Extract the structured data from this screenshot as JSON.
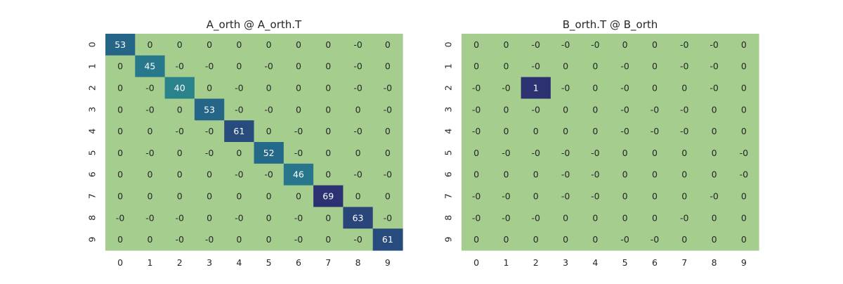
{
  "chart_data": [
    {
      "type": "heatmap",
      "title": "A_orth @ A_orth.T",
      "x_tick_labels": [
        "0",
        "1",
        "2",
        "3",
        "4",
        "5",
        "6",
        "7",
        "8",
        "9"
      ],
      "y_tick_labels": [
        "0",
        "1",
        "2",
        "3",
        "4",
        "5",
        "6",
        "7",
        "8",
        "9"
      ],
      "cell_labels": [
        [
          "53",
          "0",
          "0",
          "0",
          "0",
          "0",
          "0",
          "0",
          "-0",
          "0"
        ],
        [
          "0",
          "45",
          "-0",
          "-0",
          "0",
          "-0",
          "0",
          "0",
          "-0",
          "0"
        ],
        [
          "0",
          "-0",
          "40",
          "0",
          "-0",
          "0",
          "0",
          "0",
          "-0",
          "-0"
        ],
        [
          "0",
          "-0",
          "0",
          "53",
          "-0",
          "-0",
          "0",
          "0",
          "0",
          "-0"
        ],
        [
          "0",
          "0",
          "-0",
          "-0",
          "61",
          "0",
          "-0",
          "0",
          "-0",
          "0"
        ],
        [
          "0",
          "-0",
          "0",
          "-0",
          "0",
          "52",
          "-0",
          "0",
          "0",
          "0"
        ],
        [
          "0",
          "0",
          "0",
          "0",
          "-0",
          "-0",
          "46",
          "0",
          "-0",
          "-0"
        ],
        [
          "0",
          "0",
          "0",
          "0",
          "0",
          "0",
          "0",
          "69",
          "0",
          "0"
        ],
        [
          "-0",
          "-0",
          "-0",
          "0",
          "-0",
          "0",
          "-0",
          "0",
          "63",
          "-0"
        ],
        [
          "0",
          "0",
          "-0",
          "-0",
          "0",
          "0",
          "-0",
          "0",
          "-0",
          "61"
        ]
      ],
      "colormap": "crest",
      "colorbar": false,
      "grid": false
    },
    {
      "type": "heatmap",
      "title": "B_orth.T @ B_orth",
      "x_tick_labels": [
        "0",
        "1",
        "2",
        "3",
        "4",
        "5",
        "6",
        "7",
        "8",
        "9"
      ],
      "y_tick_labels": [
        "0",
        "1",
        "2",
        "3",
        "4",
        "5",
        "6",
        "7",
        "8",
        "9"
      ],
      "cell_labels": [
        [
          "0",
          "0",
          "-0",
          "-0",
          "-0",
          "0",
          "0",
          "-0",
          "-0",
          "0"
        ],
        [
          "0",
          "0",
          "-0",
          "0",
          "0",
          "-0",
          "0",
          "-0",
          "-0",
          "0"
        ],
        [
          "-0",
          "-0",
          "1",
          "-0",
          "0",
          "-0",
          "0",
          "0",
          "-0",
          "0"
        ],
        [
          "-0",
          "0",
          "-0",
          "0",
          "0",
          "-0",
          "-0",
          "-0",
          "0",
          "0"
        ],
        [
          "-0",
          "0",
          "0",
          "0",
          "0",
          "-0",
          "-0",
          "-0",
          "0",
          "0"
        ],
        [
          "0",
          "-0",
          "-0",
          "-0",
          "-0",
          "0",
          "0",
          "0",
          "0",
          "-0"
        ],
        [
          "0",
          "0",
          "0",
          "-0",
          "-0",
          "0",
          "0",
          "0",
          "0",
          "-0"
        ],
        [
          "-0",
          "-0",
          "0",
          "-0",
          "-0",
          "0",
          "0",
          "0",
          "-0",
          "0"
        ],
        [
          "-0",
          "-0",
          "-0",
          "0",
          "0",
          "0",
          "0",
          "-0",
          "0",
          "0"
        ],
        [
          "0",
          "0",
          "0",
          "0",
          "0",
          "-0",
          "-0",
          "0",
          "0",
          "0"
        ]
      ],
      "colormap": "crest",
      "colorbar": false,
      "grid": false
    }
  ],
  "colors": {
    "low": "#a4cd8e",
    "high": "#2c3172",
    "text_dark": "#262626",
    "text_light": "#ffffff"
  }
}
